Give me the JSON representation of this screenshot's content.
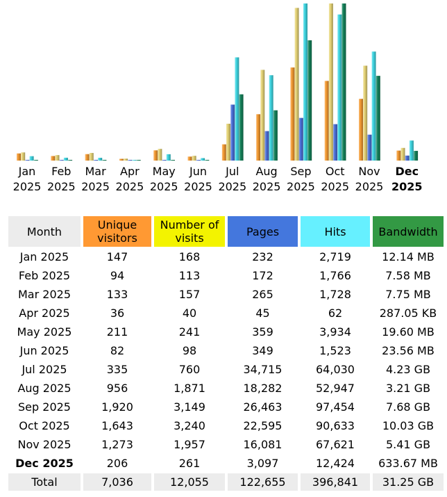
{
  "chart_data": {
    "type": "bar",
    "categories": [
      [
        "Jan",
        "2025"
      ],
      [
        "Feb",
        "2025"
      ],
      [
        "Mar",
        "2025"
      ],
      [
        "Apr",
        "2025"
      ],
      [
        "May",
        "2025"
      ],
      [
        "Jun",
        "2025"
      ],
      [
        "Jul",
        "2025"
      ],
      [
        "Aug",
        "2025"
      ],
      [
        "Sep",
        "2025"
      ],
      [
        "Oct",
        "2025"
      ],
      [
        "Nov",
        "2025"
      ],
      [
        "Dec",
        "2025"
      ]
    ],
    "current_index": 11,
    "series": [
      {
        "name": "Unique visitors",
        "color": "#f39a32",
        "values": [
          147,
          94,
          133,
          36,
          211,
          82,
          335,
          956,
          1920,
          1643,
          1273,
          206
        ]
      },
      {
        "name": "Number of visits",
        "color": "#e6d476",
        "values": [
          168,
          113,
          157,
          40,
          241,
          98,
          760,
          1871,
          3149,
          3240,
          1957,
          261
        ]
      },
      {
        "name": "Pages",
        "color": "#4a6fd8",
        "values": [
          232,
          172,
          265,
          45,
          359,
          349,
          34715,
          18282,
          26463,
          22595,
          16081,
          3097
        ]
      },
      {
        "name": "Hits",
        "color": "#3fd6e2",
        "values": [
          2719,
          1766,
          1728,
          62,
          3934,
          1523,
          64030,
          52947,
          97454,
          90633,
          67621,
          12424
        ]
      },
      {
        "name": "Bandwidth",
        "unit": "MB",
        "color": "#14825a",
        "values": [
          12.14,
          7.58,
          7.75,
          0.28,
          19.6,
          23.56,
          4331.5,
          3287,
          7864.3,
          10270.7,
          5539.8,
          633.67
        ]
      }
    ]
  },
  "table": {
    "headers": [
      {
        "label": "Month",
        "color": "#ececec"
      },
      {
        "label": "Unique visitors",
        "color": "#ff9933"
      },
      {
        "label": "Number of visits",
        "color": "#f3f300"
      },
      {
        "label": "Pages",
        "color": "#4477dd"
      },
      {
        "label": "Hits",
        "color": "#66f0ff"
      },
      {
        "label": "Bandwidth",
        "color": "#339944"
      }
    ],
    "rows": [
      [
        "Jan 2025",
        "147",
        "168",
        "232",
        "2,719",
        "12.14 MB"
      ],
      [
        "Feb 2025",
        "94",
        "113",
        "172",
        "1,766",
        "7.58 MB"
      ],
      [
        "Mar 2025",
        "133",
        "157",
        "265",
        "1,728",
        "7.75 MB"
      ],
      [
        "Apr 2025",
        "36",
        "40",
        "45",
        "62",
        "287.05 KB"
      ],
      [
        "May 2025",
        "211",
        "241",
        "359",
        "3,934",
        "19.60 MB"
      ],
      [
        "Jun 2025",
        "82",
        "98",
        "349",
        "1,523",
        "23.56 MB"
      ],
      [
        "Jul 2025",
        "335",
        "760",
        "34,715",
        "64,030",
        "4.23 GB"
      ],
      [
        "Aug 2025",
        "956",
        "1,871",
        "18,282",
        "52,947",
        "3.21 GB"
      ],
      [
        "Sep 2025",
        "1,920",
        "3,149",
        "26,463",
        "97,454",
        "7.68 GB"
      ],
      [
        "Oct 2025",
        "1,643",
        "3,240",
        "22,595",
        "90,633",
        "10.03 GB"
      ],
      [
        "Nov 2025",
        "1,273",
        "1,957",
        "16,081",
        "67,621",
        "5.41 GB"
      ],
      [
        "Dec 2025",
        "206",
        "261",
        "3,097",
        "12,424",
        "633.67 MB"
      ]
    ],
    "total": [
      "Total",
      "7,036",
      "12,055",
      "122,655",
      "396,841",
      "31.25 GB"
    ]
  }
}
